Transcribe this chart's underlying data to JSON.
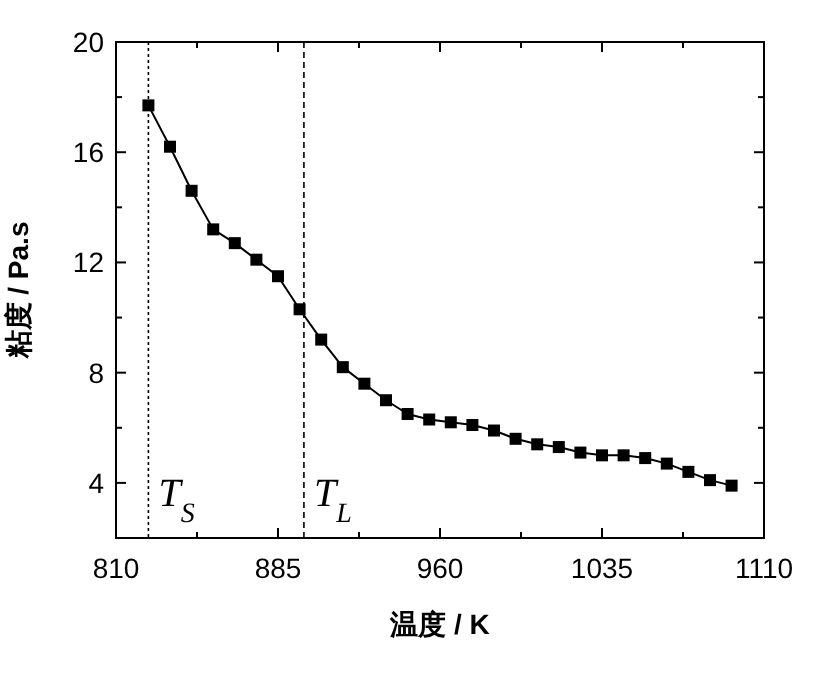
{
  "chart_data": {
    "type": "line",
    "xlabel": "温度 / K",
    "ylabel": "粘度 / Pa.s",
    "x": [
      825,
      835,
      845,
      855,
      865,
      875,
      885,
      895,
      905,
      915,
      925,
      935,
      945,
      955,
      965,
      975,
      985,
      995,
      1005,
      1015,
      1025,
      1035,
      1045,
      1055,
      1065,
      1075,
      1085,
      1095
    ],
    "series": [
      {
        "color": "#000000",
        "values": [
          17.7,
          16.2,
          14.6,
          13.2,
          12.7,
          12.1,
          11.5,
          10.3,
          9.2,
          8.2,
          7.6,
          7.0,
          6.5,
          6.3,
          6.2,
          6.1,
          5.9,
          5.6,
          5.4,
          5.3,
          5.1,
          5.0,
          5.0,
          4.9,
          4.7,
          4.4,
          4.1,
          3.9
        ]
      }
    ],
    "xlim": [
      810,
      1110
    ],
    "ylim": [
      2,
      20
    ],
    "xticks": [
      810,
      {
        "value": 847.5,
        "label": null
      },
      885,
      {
        "value": 922.5,
        "label": null
      },
      960,
      {
        "value": 997.5,
        "label": null
      },
      1035,
      {
        "value": 1072.5,
        "label": null
      },
      1110
    ],
    "yticks": [
      {
        "value": 2,
        "label": null
      },
      4,
      {
        "value": 6,
        "label": null
      },
      8,
      {
        "value": 10,
        "label": null
      },
      12,
      {
        "value": 14,
        "label": null
      },
      16,
      {
        "value": 18,
        "label": null
      },
      20
    ],
    "ref_lines": [
      {
        "axis": "x",
        "value": 825,
        "label": "T$_{S}$",
        "line_style": "dotted"
      },
      {
        "axis": "x",
        "value": 897,
        "label": "T$_{L}$",
        "line_style": "dashed"
      }
    ],
    "marker": "square",
    "line_style": "solid",
    "grid": false
  }
}
